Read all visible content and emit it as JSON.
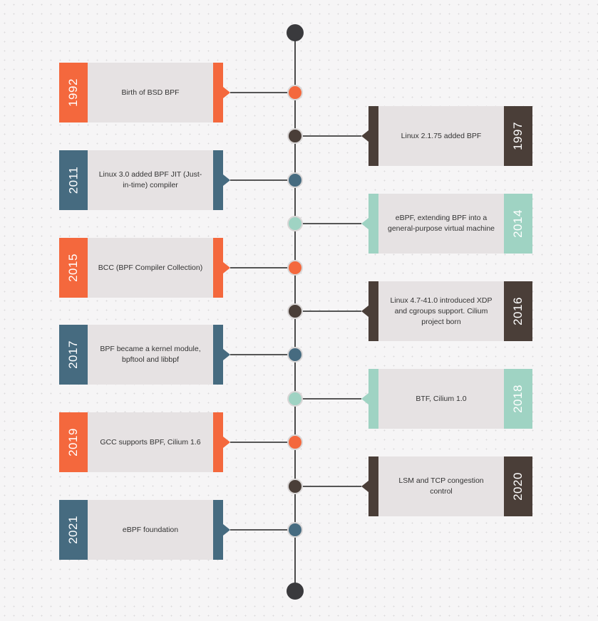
{
  "colors": {
    "orange": "#f4683d",
    "navy": "#466b80",
    "brown": "#4a3e38",
    "mint": "#9fd3c3",
    "axis": "#4a4a4a",
    "card_body": "#e6e2e3"
  },
  "events": [
    {
      "year": "1992",
      "text": "Birth of BSD BPF",
      "side": "left",
      "color": "orange"
    },
    {
      "year": "1997",
      "text": "Linux 2.1.75 added BPF",
      "side": "right",
      "color": "brown"
    },
    {
      "year": "2011",
      "text": "Linux 3.0 added BPF JIT (Just-in-time) compiler",
      "side": "left",
      "color": "navy"
    },
    {
      "year": "2014",
      "text": "eBPF, extending BPF into a general-purpose virtual machine",
      "side": "right",
      "color": "mint"
    },
    {
      "year": "2015",
      "text": "BCC (BPF Compiler Collection)",
      "side": "left",
      "color": "orange"
    },
    {
      "year": "2016",
      "text": "Linux 4.7-41.0 introduced XDP and cgroups support. Cilium project born",
      "side": "right",
      "color": "brown"
    },
    {
      "year": "2017",
      "text": "BPF became a kernel module, bpftool and libbpf",
      "side": "left",
      "color": "navy"
    },
    {
      "year": "2018",
      "text": "BTF, Cilium 1.0",
      "side": "right",
      "color": "mint"
    },
    {
      "year": "2019",
      "text": "GCC supports BPF, Cilium 1.6",
      "side": "left",
      "color": "orange"
    },
    {
      "year": "2020",
      "text": "LSM and TCP congestion control",
      "side": "right",
      "color": "brown"
    },
    {
      "year": "2021",
      "text": "eBPF foundation",
      "side": "left",
      "color": "navy"
    }
  ]
}
